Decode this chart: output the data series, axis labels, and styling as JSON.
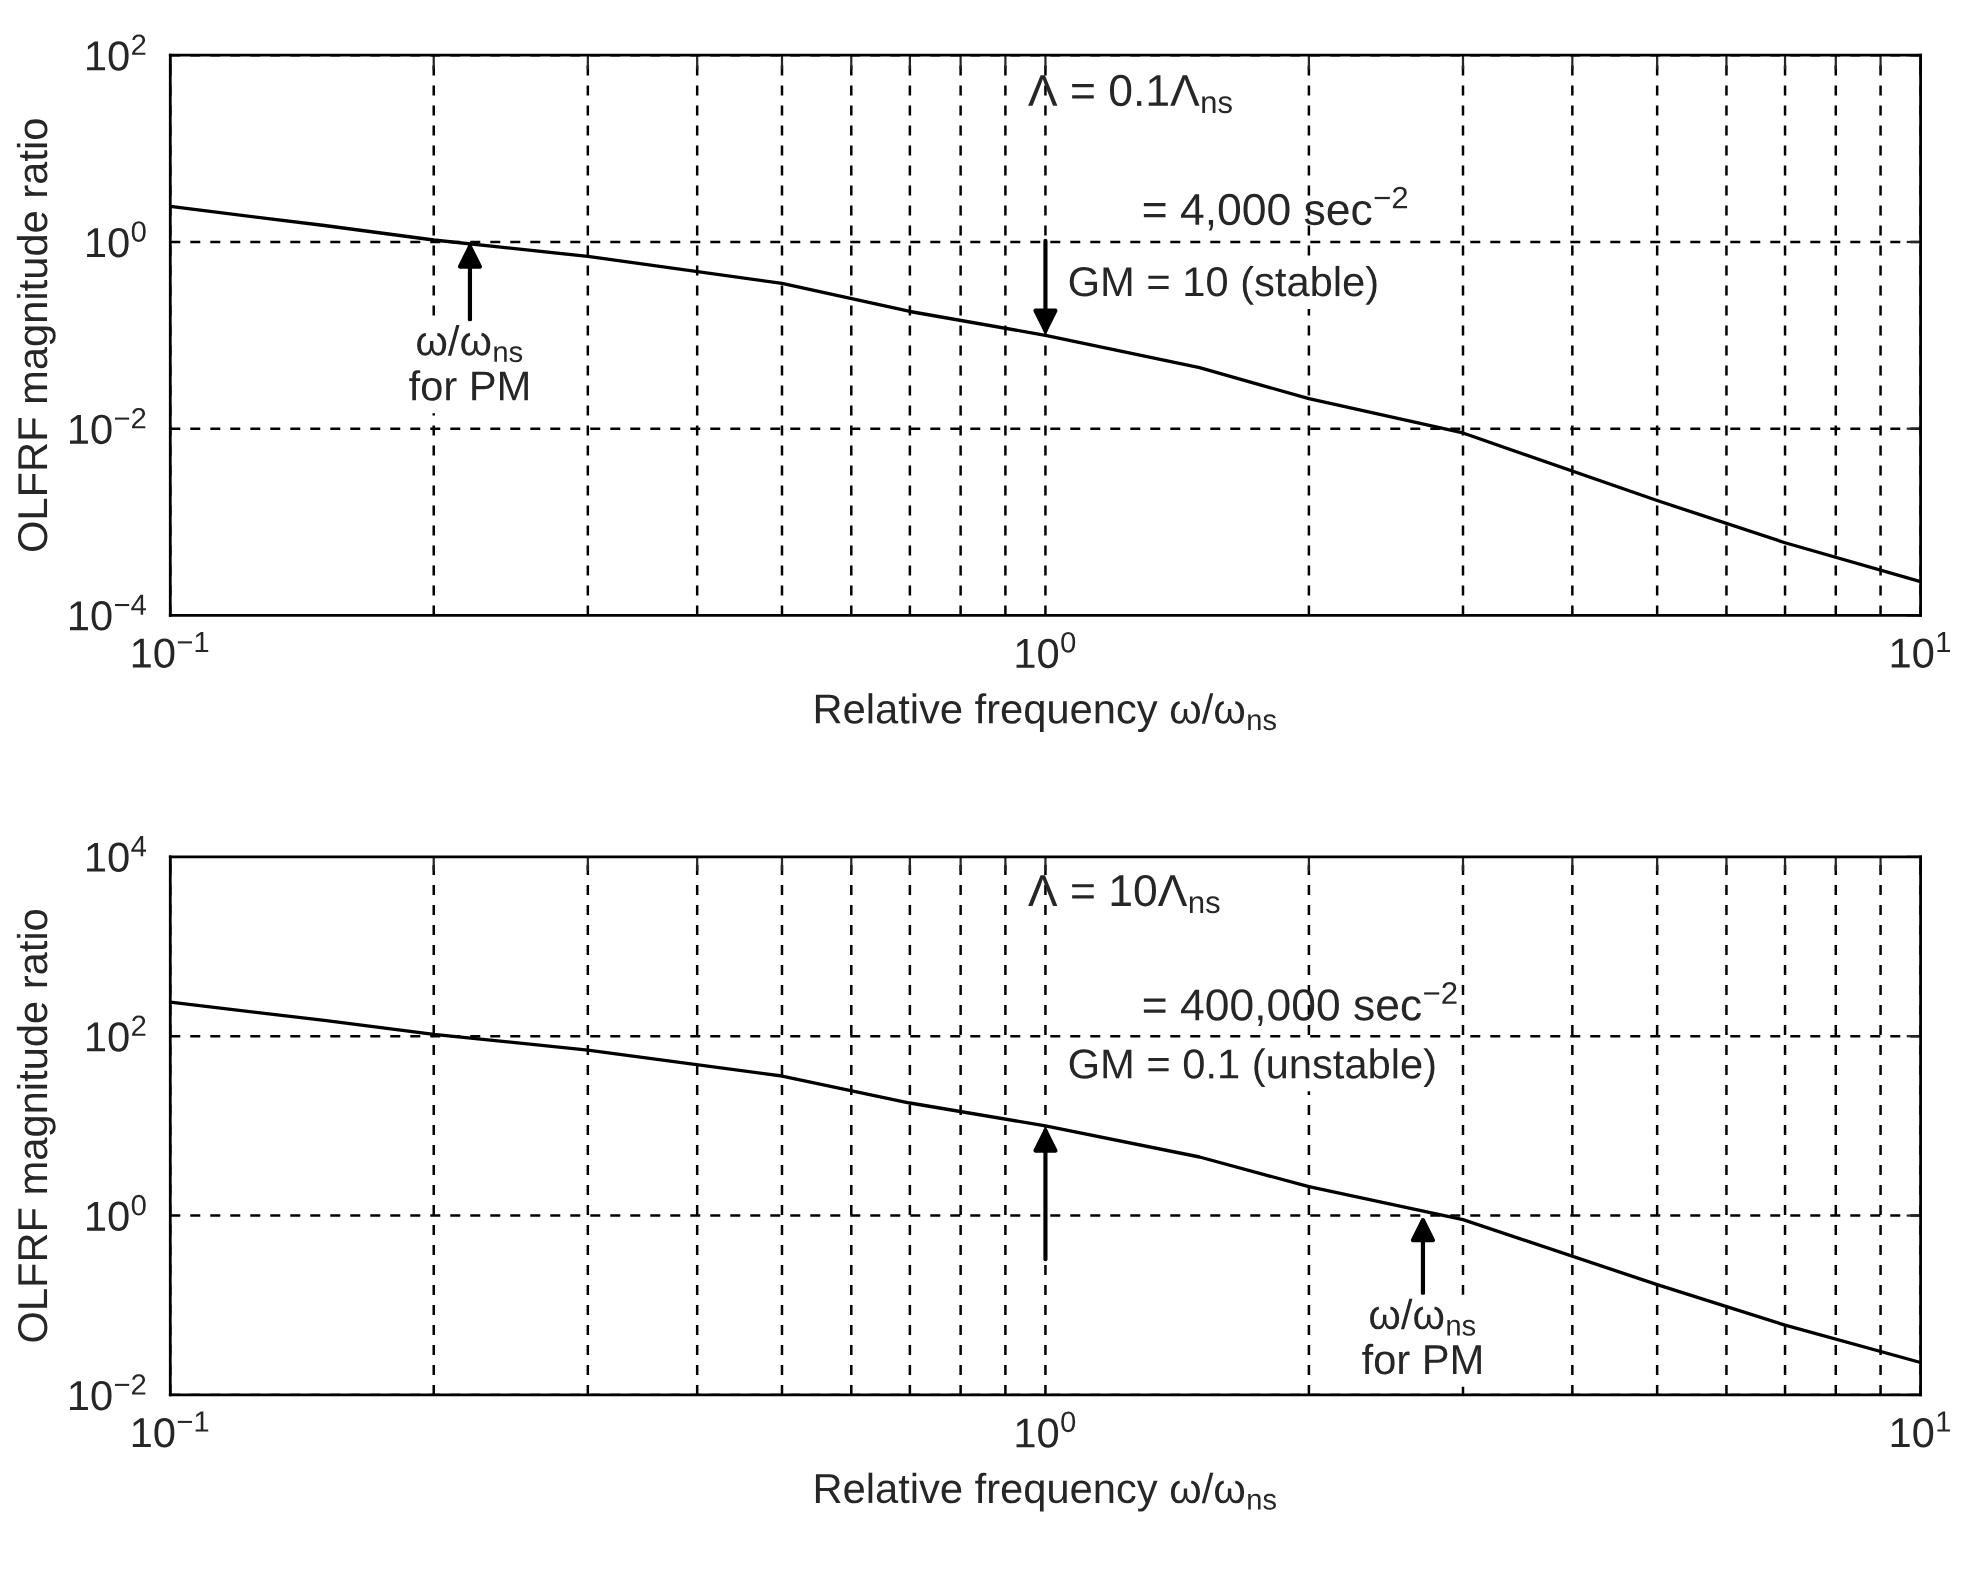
{
  "chart_data": [
    {
      "type": "line",
      "xlabel": "Relative frequency ω/ω$_{ns}$",
      "ylabel": "OLFRF magnitude ratio",
      "log": "xy",
      "grid": true,
      "x": [
        0.1,
        0.15,
        0.2,
        0.3,
        0.5,
        0.7,
        1,
        1.5,
        2,
        3,
        5,
        7,
        10
      ],
      "series": [
        {
          "color": "#000000",
          "values": [
            2.4,
            1.5,
            1.05,
            0.7,
            0.36,
            0.18,
            0.1,
            0.045,
            0.021,
            0.009,
            0.0017,
            0.0006,
            0.00023
          ]
        }
      ],
      "xlim": [
        0.1,
        10
      ],
      "ylim": [
        0.0001,
        100
      ],
      "xticks": [
        {
          "value": 0.1,
          "label": "10$^{−1}$"
        },
        {
          "value": 0.2,
          "label": null
        },
        {
          "value": 0.3,
          "label": null
        },
        {
          "value": 0.4,
          "label": null
        },
        {
          "value": 0.5,
          "label": null
        },
        {
          "value": 0.6,
          "label": null
        },
        {
          "value": 0.7,
          "label": null
        },
        {
          "value": 0.8,
          "label": null
        },
        {
          "value": 0.9,
          "label": null
        },
        {
          "value": 1,
          "label": "10$^{0}$"
        },
        {
          "value": 2,
          "label": null
        },
        {
          "value": 3,
          "label": null
        },
        {
          "value": 4,
          "label": null
        },
        {
          "value": 5,
          "label": null
        },
        {
          "value": 6,
          "label": null
        },
        {
          "value": 7,
          "label": null
        },
        {
          "value": 8,
          "label": null
        },
        {
          "value": 9,
          "label": null
        },
        {
          "value": 10,
          "label": "10$^{1}$"
        }
      ],
      "yticks": [
        {
          "value": 0.0001,
          "label": "10$^{−4}$"
        },
        {
          "value": 0.01,
          "label": "10$^{−2}$"
        },
        {
          "value": 1,
          "label": "10$^{0}$"
        },
        {
          "value": 100,
          "label": "10$^{2}$"
        }
      ],
      "annotations": [
        "Λ = 0.1Λ$_{ns}$",
        "= 4,000 sec$^{−2}$",
        {
          "text": "ω/ω$_{ns}$\nfor PM",
          "x": 0.22,
          "y": 1
        },
        {
          "text": "GM = 10 (stable)",
          "x": 1,
          "y": 0.1
        }
      ]
    },
    {
      "type": "line",
      "xlabel": "Relative frequency ω/ω$_{ns}$",
      "ylabel": "OLFRF magnitude ratio",
      "log": "xy",
      "grid": true,
      "x": [
        0.1,
        0.15,
        0.2,
        0.3,
        0.5,
        0.7,
        1,
        1.5,
        2,
        3,
        5,
        7,
        10
      ],
      "series": [
        {
          "color": "#000000",
          "values": [
            240,
            150,
            105,
            70,
            36,
            18,
            10,
            4.5,
            2.1,
            0.9,
            0.17,
            0.06,
            0.023
          ]
        }
      ],
      "xlim": [
        0.1,
        10
      ],
      "ylim": [
        0.01,
        10000
      ],
      "xticks": [
        {
          "value": 0.1,
          "label": "10$^{−1}$"
        },
        {
          "value": 0.2,
          "label": null
        },
        {
          "value": 0.3,
          "label": null
        },
        {
          "value": 0.4,
          "label": null
        },
        {
          "value": 0.5,
          "label": null
        },
        {
          "value": 0.6,
          "label": null
        },
        {
          "value": 0.7,
          "label": null
        },
        {
          "value": 0.8,
          "label": null
        },
        {
          "value": 0.9,
          "label": null
        },
        {
          "value": 1,
          "label": "10$^{0}$"
        },
        {
          "value": 2,
          "label": null
        },
        {
          "value": 3,
          "label": null
        },
        {
          "value": 4,
          "label": null
        },
        {
          "value": 5,
          "label": null
        },
        {
          "value": 6,
          "label": null
        },
        {
          "value": 7,
          "label": null
        },
        {
          "value": 8,
          "label": null
        },
        {
          "value": 9,
          "label": null
        },
        {
          "value": 10,
          "label": "10$^{1}$"
        }
      ],
      "yticks": [
        {
          "value": 0.01,
          "label": "10$^{−2}$"
        },
        {
          "value": 1,
          "label": "10$^{0}$"
        },
        {
          "value": 100,
          "label": "10$^{2}$"
        },
        {
          "value": 10000,
          "label": "10$^{4}$"
        }
      ],
      "annotations": [
        "Λ = 10Λ$_{ns}$",
        "= 400,000 sec$^{−2}$",
        {
          "text": "GM = 0.1 (unstable)",
          "x": 1,
          "y": 10
        },
        {
          "text": "ω/ω$_{ns}$\nfor PM",
          "x": 2.7,
          "y": 1
        }
      ]
    }
  ]
}
